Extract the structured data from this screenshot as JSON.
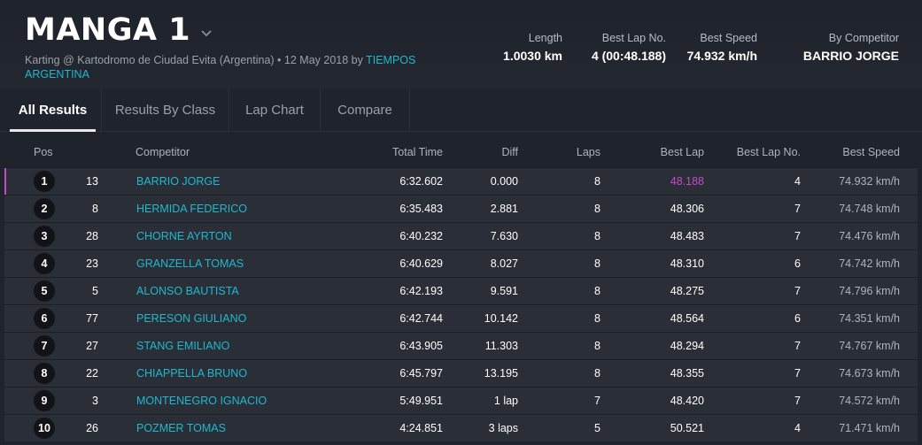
{
  "session": {
    "title": "MANGA 1",
    "subtitle_prefix": "Karting @ Kartodromo de Ciudad Evita (Argentina) • 12 May 2018 by ",
    "organizer": "TIEMPOS ARGENTINA"
  },
  "stats": [
    {
      "label": "Length",
      "value": "1.0030 km"
    },
    {
      "label": "Best Lap No.",
      "value": "4 (00:48.188)"
    },
    {
      "label": "Best Speed",
      "value": "74.932 km/h"
    },
    {
      "label": "By Competitor",
      "value": "BARRIO JORGE"
    }
  ],
  "tabs": [
    {
      "label": "All Results",
      "active": true
    },
    {
      "label": "Results By Class",
      "active": false
    },
    {
      "label": "Lap Chart",
      "active": false
    },
    {
      "label": "Compare",
      "active": false
    }
  ],
  "table": {
    "columns": {
      "pos": "Pos",
      "competitor": "Competitor",
      "total_time": "Total Time",
      "diff": "Diff",
      "laps": "Laps",
      "best_lap": "Best Lap",
      "best_lap_no": "Best Lap No.",
      "best_speed": "Best Speed"
    },
    "rows": [
      {
        "pos": "1",
        "num": "13",
        "name": "BARRIO JORGE",
        "total": "6:32.602",
        "diff": "0.000",
        "laps": "8",
        "best": "48.188",
        "bestno": "4",
        "speed": "74.932 km/h"
      },
      {
        "pos": "2",
        "num": "8",
        "name": "HERMIDA FEDERICO",
        "total": "6:35.483",
        "diff": "2.881",
        "laps": "8",
        "best": "48.306",
        "bestno": "7",
        "speed": "74.748 km/h"
      },
      {
        "pos": "3",
        "num": "28",
        "name": "CHORNE AYRTON",
        "total": "6:40.232",
        "diff": "7.630",
        "laps": "8",
        "best": "48.483",
        "bestno": "7",
        "speed": "74.476 km/h"
      },
      {
        "pos": "4",
        "num": "23",
        "name": "GRANZELLA TOMAS",
        "total": "6:40.629",
        "diff": "8.027",
        "laps": "8",
        "best": "48.310",
        "bestno": "6",
        "speed": "74.742 km/h"
      },
      {
        "pos": "5",
        "num": "5",
        "name": "ALONSO BAUTISTA",
        "total": "6:42.193",
        "diff": "9.591",
        "laps": "8",
        "best": "48.275",
        "bestno": "7",
        "speed": "74.796 km/h"
      },
      {
        "pos": "6",
        "num": "77",
        "name": "PERESON GIULIANO",
        "total": "6:42.744",
        "diff": "10.142",
        "laps": "8",
        "best": "48.564",
        "bestno": "6",
        "speed": "74.351 km/h"
      },
      {
        "pos": "7",
        "num": "27",
        "name": "STANG EMILIANO",
        "total": "6:43.905",
        "diff": "11.303",
        "laps": "8",
        "best": "48.294",
        "bestno": "7",
        "speed": "74.767 km/h"
      },
      {
        "pos": "8",
        "num": "22",
        "name": "CHIAPPELLA BRUNO",
        "total": "6:45.797",
        "diff": "13.195",
        "laps": "8",
        "best": "48.355",
        "bestno": "7",
        "speed": "74.673 km/h"
      },
      {
        "pos": "9",
        "num": "3",
        "name": "MONTENEGRO IGNACIO",
        "total": "5:49.951",
        "diff": "1 lap",
        "laps": "7",
        "best": "48.420",
        "bestno": "7",
        "speed": "74.572 km/h"
      },
      {
        "pos": "10",
        "num": "26",
        "name": "POZMER TOMAS",
        "total": "4:24.851",
        "diff": "3 laps",
        "laps": "5",
        "best": "50.521",
        "bestno": "4",
        "speed": "71.471 km/h"
      }
    ]
  },
  "colors": {
    "accent": "#21b8cf",
    "best_lap_highlight": "#c44bc6",
    "background": "#1f232b",
    "row_background": "#2a2e37"
  }
}
